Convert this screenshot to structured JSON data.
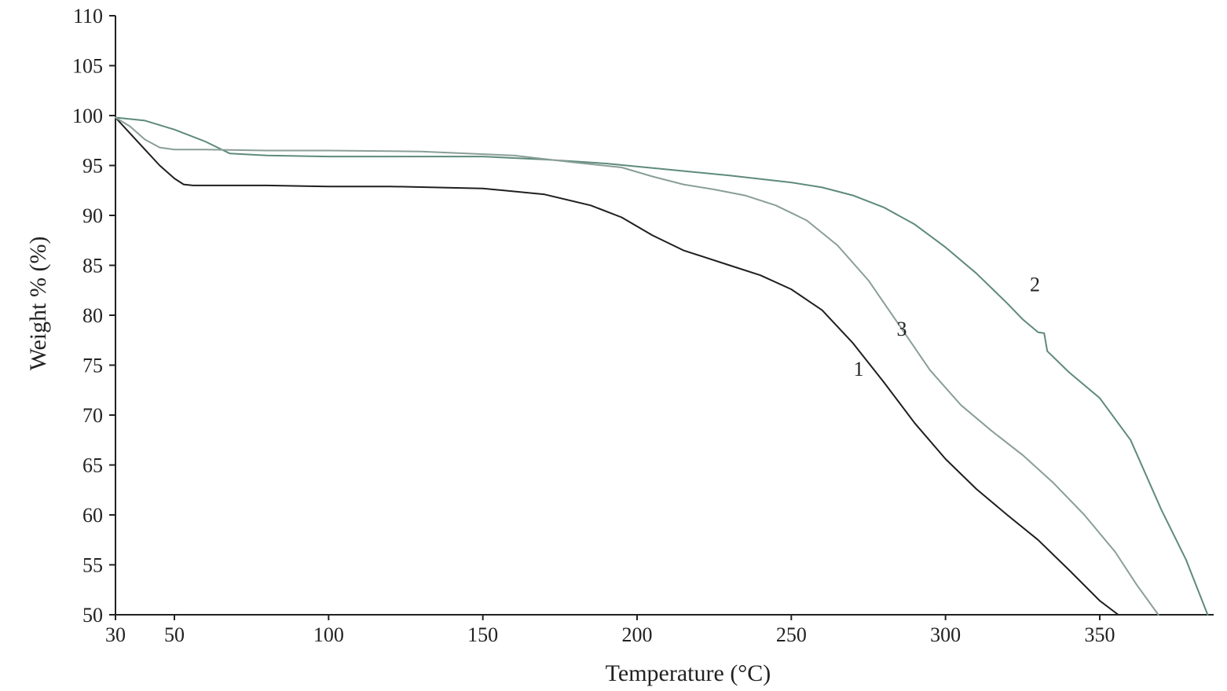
{
  "chart_data": {
    "type": "line",
    "title": "",
    "xlabel": "Temperature (°C)",
    "ylabel": "Weight % (%)",
    "xlim": [
      30,
      390
    ],
    "ylim": [
      50,
      110
    ],
    "x_ticks": [
      30,
      50,
      100,
      150,
      200,
      250,
      300,
      350
    ],
    "y_ticks": [
      50,
      55,
      60,
      65,
      70,
      75,
      80,
      85,
      90,
      95,
      100,
      105,
      110
    ],
    "grid": false,
    "legend": "none",
    "series": [
      {
        "name": "1",
        "color": "#1f1f1f",
        "x": [
          30,
          35,
          40,
          45,
          50,
          53,
          56,
          60,
          80,
          100,
          120,
          150,
          170,
          185,
          195,
          205,
          215,
          222,
          230,
          240,
          250,
          260,
          270,
          280,
          290,
          300,
          310,
          320,
          330,
          340,
          350,
          356
        ],
        "y": [
          99.8,
          98.2,
          96.6,
          95.0,
          93.7,
          93.1,
          93.0,
          93.0,
          93.0,
          92.9,
          92.9,
          92.7,
          92.1,
          91.0,
          89.8,
          88.0,
          86.5,
          85.8,
          85.0,
          84.0,
          82.6,
          80.5,
          77.2,
          73.3,
          69.2,
          65.6,
          62.6,
          60.0,
          57.5,
          54.5,
          51.4,
          50.0
        ]
      },
      {
        "name": "2",
        "color": "#5e8a7c",
        "x": [
          30,
          40,
          50,
          60,
          68,
          80,
          100,
          150,
          170,
          190,
          210,
          230,
          250,
          260,
          270,
          280,
          290,
          300,
          310,
          320,
          325,
          330,
          332,
          333,
          340,
          350,
          360,
          370,
          378,
          385
        ],
        "y": [
          99.8,
          99.5,
          98.6,
          97.4,
          96.2,
          96.0,
          95.9,
          95.9,
          95.6,
          95.2,
          94.6,
          94.0,
          93.3,
          92.8,
          92.0,
          90.8,
          89.1,
          86.8,
          84.2,
          81.2,
          79.6,
          78.3,
          78.2,
          76.4,
          74.3,
          71.7,
          67.5,
          60.5,
          55.5,
          50.0
        ]
      },
      {
        "name": "3",
        "color": "#8a9e98",
        "x": [
          30,
          35,
          40,
          45,
          50,
          60,
          80,
          100,
          130,
          160,
          180,
          195,
          205,
          215,
          225,
          235,
          245,
          255,
          265,
          275,
          285,
          295,
          305,
          315,
          325,
          335,
          345,
          355,
          362,
          369
        ],
        "y": [
          99.8,
          98.9,
          97.6,
          96.8,
          96.6,
          96.6,
          96.5,
          96.5,
          96.4,
          96.0,
          95.3,
          94.8,
          93.9,
          93.1,
          92.6,
          92.0,
          91.0,
          89.5,
          87.0,
          83.5,
          79.0,
          74.5,
          71.0,
          68.4,
          66.0,
          63.2,
          60.0,
          56.3,
          53.0,
          50.0
        ]
      }
    ]
  }
}
